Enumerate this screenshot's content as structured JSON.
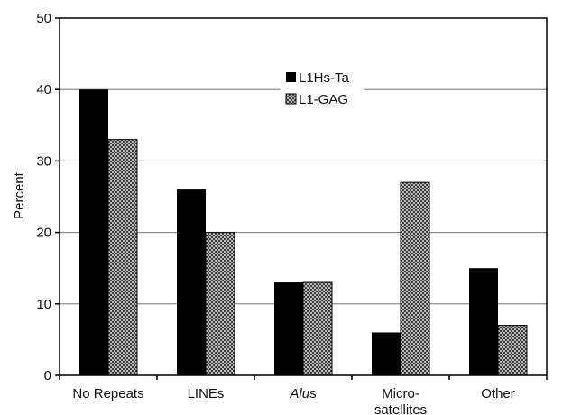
{
  "chart_data": {
    "type": "bar",
    "ylabel": "Percent",
    "xlabel": "",
    "ylim": [
      0,
      50
    ],
    "yticks": [
      0,
      10,
      20,
      30,
      40,
      50
    ],
    "grid": true,
    "legend_position": "top-center",
    "categories": [
      {
        "lines": [
          "No Repeats"
        ],
        "italic": false
      },
      {
        "lines": [
          "LINEs"
        ],
        "italic": false
      },
      {
        "lines": [
          "Alus"
        ],
        "italic": false,
        "italic_part": "Alu"
      },
      {
        "lines": [
          "Micro-",
          "satellites"
        ],
        "italic": false
      },
      {
        "lines": [
          "Other"
        ],
        "italic": false
      }
    ],
    "series": [
      {
        "name": "L1Hs-Ta",
        "color": "#000000",
        "pattern": "solid",
        "values": [
          40,
          26,
          13,
          6,
          15
        ]
      },
      {
        "name": "L1-GAG",
        "color": "#9a9a9a",
        "pattern": "dotted",
        "values": [
          33,
          20,
          13,
          27,
          7
        ]
      }
    ]
  }
}
